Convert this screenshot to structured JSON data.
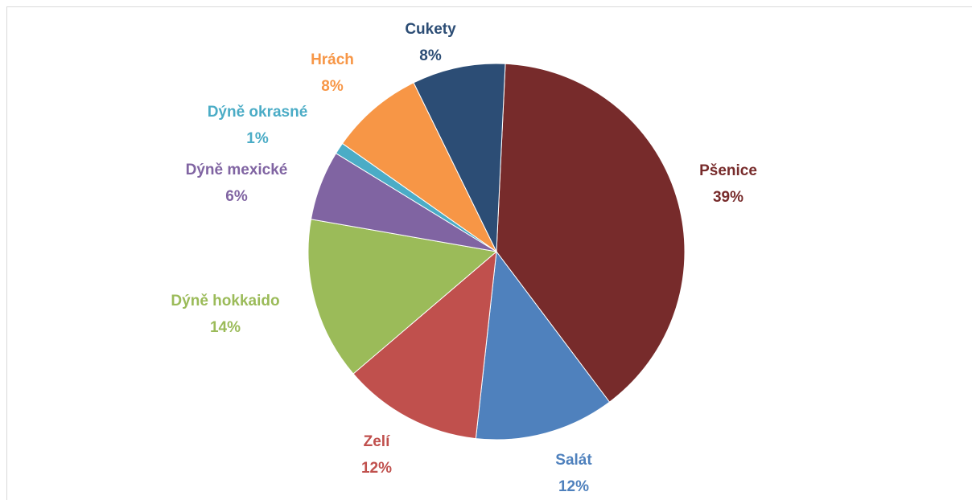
{
  "chart_data": {
    "type": "pie",
    "categories": [
      "Pšenice",
      "Salát",
      "Zelí",
      "Dýně hokkaido",
      "Dýně mexické",
      "Dýně okrasné",
      "Hrách",
      "Cukety"
    ],
    "values": [
      39,
      12,
      12,
      14,
      6,
      1,
      8,
      8
    ],
    "value_labels": [
      "39%",
      "12%",
      "12%",
      "14%",
      "6%",
      "1%",
      "8%",
      "8%"
    ],
    "colors": [
      "#772b2b",
      "#4f81bd",
      "#c0504d",
      "#9bbb59",
      "#8064a2",
      "#4bacc6",
      "#f79646",
      "#2c4d75"
    ]
  }
}
